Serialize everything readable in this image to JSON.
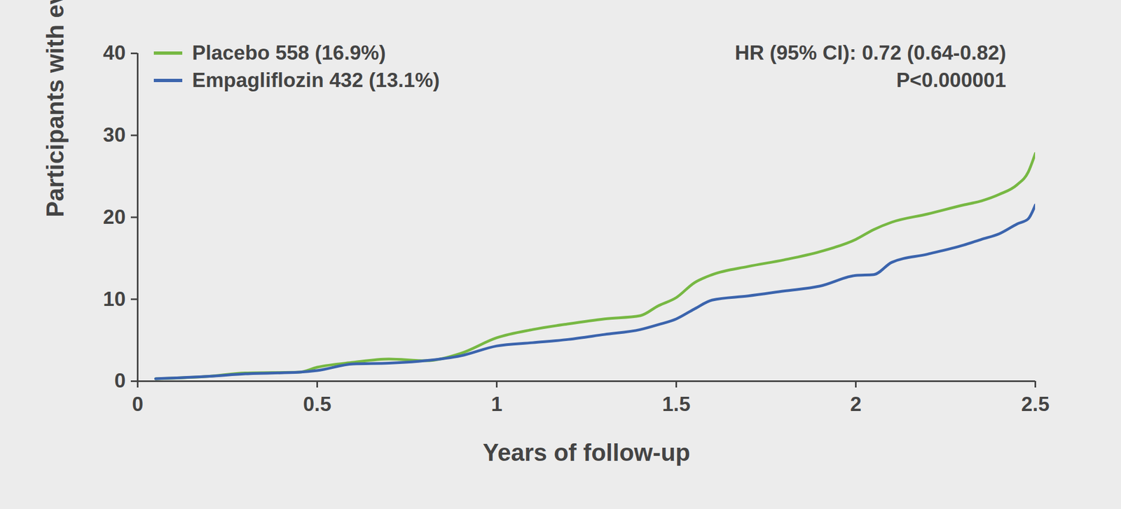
{
  "chart_data": {
    "type": "line",
    "xlabel": "Years of follow-up",
    "ylabel": "Participants with event (%)",
    "annotations": [
      "HR (95% CI): 0.72 (0.64-0.82)",
      "P<0.000001"
    ],
    "x": [
      0.05,
      0.2,
      0.3,
      0.45,
      0.5,
      0.6,
      0.7,
      0.8,
      0.9,
      1.0,
      1.1,
      1.2,
      1.3,
      1.4,
      1.45,
      1.5,
      1.55,
      1.6,
      1.7,
      1.8,
      1.9,
      2.0,
      2.05,
      2.1,
      2.2,
      2.3,
      2.35,
      2.4,
      2.45,
      2.48,
      2.5
    ],
    "series": [
      {
        "name": "Placebo 558 (16.9%)",
        "color": "#77b843",
        "values": [
          0.3,
          0.6,
          1.0,
          1.1,
          1.7,
          2.3,
          2.7,
          2.5,
          3.4,
          5.3,
          6.3,
          7.0,
          7.6,
          8.0,
          9.2,
          10.2,
          12.0,
          13.0,
          14.0,
          14.8,
          15.8,
          17.3,
          18.5,
          19.4,
          20.4,
          21.5,
          22.0,
          22.8,
          24.0,
          25.5,
          27.8
        ]
      },
      {
        "name": "Empagliflozin 432 (13.1%)",
        "color": "#3b64ad",
        "values": [
          0.3,
          0.6,
          0.9,
          1.1,
          1.3,
          2.1,
          2.2,
          2.5,
          3.1,
          4.3,
          4.7,
          5.1,
          5.7,
          6.3,
          6.9,
          7.6,
          8.8,
          9.9,
          10.4,
          11.0,
          11.6,
          12.9,
          13.0,
          14.5,
          15.5,
          16.6,
          17.3,
          18.0,
          19.2,
          19.8,
          21.5
        ]
      }
    ],
    "xlim": [
      0,
      2.5
    ],
    "xticks": [
      0,
      0.5,
      1,
      1.5,
      2,
      2.5
    ],
    "ylim": [
      0,
      40
    ],
    "yticks": [
      0,
      10,
      20,
      30,
      40
    ],
    "grid": false,
    "legend": "top-left"
  }
}
